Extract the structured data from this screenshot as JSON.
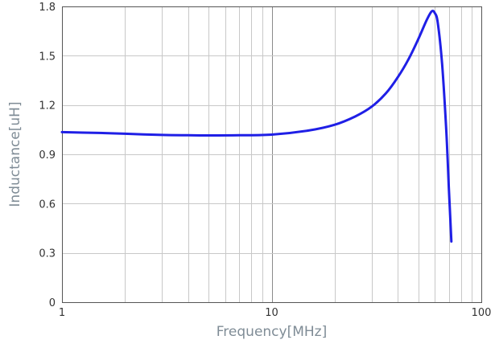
{
  "chart_data": {
    "type": "line",
    "xlabel": "Frequency[MHz]",
    "ylabel": "Inductance[uH]",
    "x_scale": "log",
    "xlim": [
      1,
      100
    ],
    "ylim": [
      0,
      1.8
    ],
    "x_tick_labels": [
      "1",
      "10",
      "100"
    ],
    "y_tick_labels": [
      "0",
      "0.3",
      "0.6",
      "0.9",
      "1.2",
      "1.5",
      "1.8"
    ],
    "grid": true,
    "colors": {
      "line": "#1f1fe6",
      "grid": "#c8c8c8",
      "frame": "#555555"
    },
    "series": [
      {
        "x": [
          1,
          1.5,
          2,
          3,
          4,
          5,
          7,
          10,
          15,
          20,
          25,
          30,
          35,
          40,
          45,
          50,
          55,
          58,
          60,
          62,
          65,
          68,
          70,
          72
        ],
        "y": [
          1.035,
          1.03,
          1.025,
          1.018,
          1.016,
          1.015,
          1.016,
          1.02,
          1.045,
          1.08,
          1.13,
          1.19,
          1.27,
          1.37,
          1.48,
          1.6,
          1.72,
          1.77,
          1.76,
          1.7,
          1.45,
          1.05,
          0.7,
          0.37
        ]
      }
    ]
  }
}
